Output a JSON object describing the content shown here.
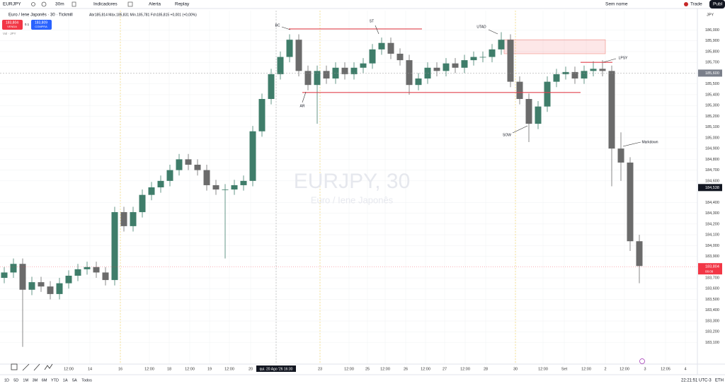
{
  "toolbar": {
    "symbol": "EURJPY",
    "interval": "30m",
    "indicators": "Indicadores",
    "alert": "Alerta",
    "replay": "Replay",
    "layout_name": "Sem nome",
    "trade": "Trade",
    "publish": "Publ"
  },
  "legend": {
    "title": "Euro / Iene Japonês · 30 · Tickmill",
    "ohlc": "Abr185,814 Máx.185,831 Mín.185,781 Fch185,815 +0,001 (+0,00%)",
    "sell_price": "183,804",
    "sell": "VENDA",
    "spread": "0.1",
    "buy_price": "183,809",
    "buy": "COMPRA",
    "volume": "Vol · JPY"
  },
  "watermark": {
    "symbol": "EURJPY, 30",
    "name": "Euro / Iene Japonês"
  },
  "chart_data": {
    "type": "candlestick",
    "currency": "JPY",
    "up_color": "#3f7d6a",
    "down_color": "#6b6b6b",
    "open": [
      183.7,
      183.75,
      183.83,
      183.59,
      183.66,
      183.62,
      183.55,
      183.65,
      183.72,
      183.78,
      183.8,
      183.75,
      183.68,
      184.31,
      184.18,
      184.31,
      184.47,
      184.54,
      184.6,
      184.7,
      184.8,
      184.75,
      184.7,
      184.56,
      184.52,
      184.52,
      184.56,
      184.6,
      185.06,
      185.36,
      185.59,
      185.75,
      185.91,
      185.62,
      185.49,
      185.62,
      185.55,
      185.65,
      185.59,
      185.65,
      185.69,
      185.82,
      185.88,
      185.78,
      185.72,
      185.49,
      185.55,
      185.65,
      185.62,
      185.69,
      185.65,
      185.72,
      185.75,
      185.75,
      185.82,
      185.91,
      185.52,
      185.36,
      185.13,
      185.29,
      185.52,
      185.59,
      185.61,
      185.55,
      185.62,
      185.64,
      185.62,
      184.9,
      184.77,
      184.04
    ],
    "high": [
      183.8,
      183.88,
      183.88,
      183.71,
      183.71,
      183.67,
      183.7,
      183.77,
      183.83,
      183.85,
      183.85,
      183.8,
      184.36,
      184.36,
      184.36,
      184.52,
      184.59,
      184.65,
      184.75,
      184.85,
      184.85,
      184.8,
      184.75,
      184.61,
      184.57,
      184.61,
      184.65,
      185.11,
      185.41,
      185.64,
      185.8,
      185.96,
      185.96,
      185.67,
      185.67,
      185.67,
      185.7,
      185.7,
      185.7,
      185.74,
      185.87,
      185.93,
      185.93,
      185.83,
      185.77,
      185.6,
      185.7,
      185.7,
      185.74,
      185.74,
      185.77,
      185.8,
      185.8,
      185.87,
      185.98,
      185.96,
      185.57,
      185.41,
      185.34,
      185.57,
      185.64,
      185.66,
      185.66,
      185.67,
      185.71,
      185.72,
      185.67,
      185.05,
      184.82,
      184.1
    ],
    "low": [
      183.65,
      183.7,
      183.06,
      183.54,
      183.57,
      183.5,
      183.5,
      183.6,
      183.67,
      183.73,
      183.7,
      183.63,
      183.63,
      184.13,
      184.13,
      184.26,
      184.42,
      184.49,
      184.55,
      184.65,
      184.7,
      184.65,
      184.51,
      184.47,
      183.88,
      184.47,
      184.51,
      184.55,
      185.01,
      185.31,
      185.54,
      185.7,
      185.57,
      185.44,
      185.13,
      185.5,
      185.5,
      185.54,
      185.54,
      185.6,
      185.64,
      185.77,
      185.73,
      185.67,
      185.4,
      185.44,
      185.5,
      185.57,
      185.57,
      185.6,
      185.6,
      185.67,
      185.7,
      185.7,
      185.77,
      185.47,
      185.31,
      184.96,
      185.08,
      185.24,
      185.47,
      185.54,
      185.5,
      185.5,
      185.57,
      185.57,
      184.55,
      184.6,
      183.95,
      183.65
    ],
    "close": [
      183.75,
      183.83,
      183.59,
      183.66,
      183.62,
      183.55,
      183.65,
      183.72,
      183.78,
      183.8,
      183.75,
      183.68,
      184.31,
      184.18,
      184.31,
      184.47,
      184.54,
      184.6,
      184.7,
      184.8,
      184.75,
      184.7,
      184.56,
      184.52,
      184.52,
      184.56,
      184.6,
      185.06,
      185.36,
      185.59,
      185.75,
      185.91,
      185.62,
      185.49,
      185.62,
      185.55,
      185.65,
      185.59,
      185.65,
      185.69,
      185.82,
      185.88,
      185.78,
      185.72,
      185.49,
      185.55,
      185.65,
      185.62,
      185.69,
      185.65,
      185.72,
      185.75,
      185.75,
      185.82,
      185.91,
      185.52,
      185.36,
      185.13,
      185.29,
      185.52,
      185.59,
      185.61,
      185.55,
      185.62,
      185.64,
      185.62,
      184.9,
      184.77,
      184.04,
      183.81
    ],
    "ylim": [
      182.9,
      186.18
    ],
    "yticks": [
      {
        "value": 186.0,
        "label": "186,000"
      },
      {
        "value": 185.9,
        "label": "185,900"
      },
      {
        "value": 185.8,
        "label": "185,800"
      },
      {
        "value": 185.7,
        "label": "185,700"
      },
      {
        "value": 185.5,
        "label": "185,500"
      },
      {
        "value": 185.4,
        "label": "185,400"
      },
      {
        "value": 185.3,
        "label": "185,300"
      },
      {
        "value": 185.2,
        "label": "185,200"
      },
      {
        "value": 185.1,
        "label": "185,100"
      },
      {
        "value": 185.0,
        "label": "185,000"
      },
      {
        "value": 184.9,
        "label": "184,900"
      },
      {
        "value": 184.8,
        "label": "184,800"
      },
      {
        "value": 184.7,
        "label": "184,700"
      },
      {
        "value": 184.6,
        "label": "184,600"
      },
      {
        "value": 184.4,
        "label": "184,400"
      },
      {
        "value": 184.3,
        "label": "184,300"
      },
      {
        "value": 184.2,
        "label": "184,200"
      },
      {
        "value": 184.1,
        "label": "184,100"
      },
      {
        "value": 184.0,
        "label": "184,000"
      },
      {
        "value": 183.9,
        "label": "183,900"
      },
      {
        "value": 183.7,
        "label": "183,700"
      },
      {
        "value": 183.6,
        "label": "183,600"
      },
      {
        "value": 183.5,
        "label": "183,500"
      },
      {
        "value": 183.4,
        "label": "183,400"
      },
      {
        "value": 183.3,
        "label": "183,300"
      },
      {
        "value": 183.2,
        "label": "183,200"
      },
      {
        "value": 183.1,
        "label": "183,100"
      }
    ],
    "xticks": [
      "12:00",
      "14",
      "16",
      "12:00",
      "18",
      "12:00",
      "19",
      "12:00",
      "20",
      "qui. 20 Ago '26  16:30",
      "23",
      "12:00",
      "25",
      "12:00",
      "26",
      "12:00",
      "27",
      "12:00",
      "28",
      "30",
      "12:00",
      "Set",
      "12:00",
      "2",
      "12:00",
      "3",
      "12:05",
      "4"
    ],
    "price_labels": [
      {
        "value": 185.6,
        "label": "185,600"
      },
      {
        "value": 184.538,
        "label": "184,538"
      },
      {
        "value": 183.804,
        "label": "183,804",
        "countdown": "08:09"
      }
    ],
    "levels": [
      {
        "value": 186.01
      },
      {
        "value": 185.42
      },
      {
        "value": 185.7
      }
    ],
    "zone": [
      185.78,
      185.91
    ],
    "annotations": [
      "BC",
      "ST",
      "UTAD",
      "LPSY",
      "AR",
      "SOW",
      "Markdown"
    ]
  },
  "bottom": {
    "ranges": [
      "1D",
      "5D",
      "1M",
      "3M",
      "6M",
      "YTD",
      "1A",
      "5A",
      "Todos"
    ],
    "clock": "22:21:51 UTC-3",
    "session": "ETH"
  }
}
